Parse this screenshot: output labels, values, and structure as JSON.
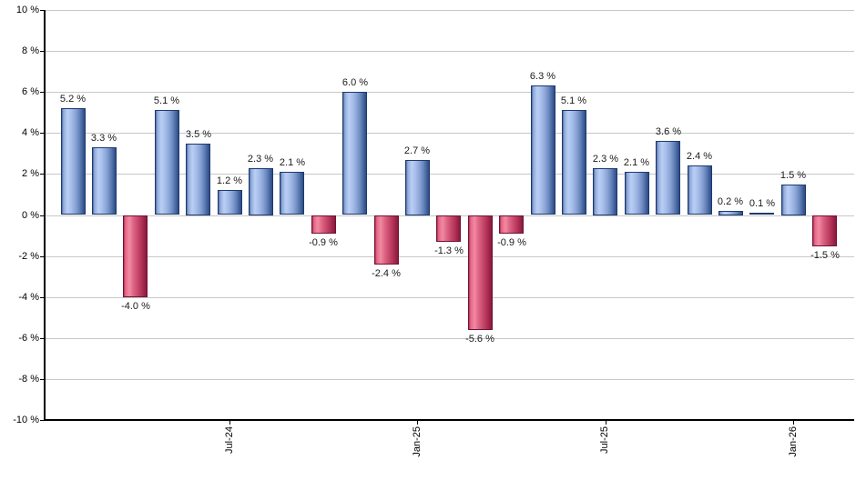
{
  "chart_data": {
    "type": "bar",
    "title": "",
    "description": "Monthly total returns bar chart, positive months blue, negative months red",
    "unit": "%",
    "values": [
      5.2,
      3.3,
      -4.0,
      5.1,
      3.5,
      1.2,
      2.3,
      2.1,
      -0.9,
      6.0,
      -2.4,
      2.7,
      -1.3,
      -5.6,
      -0.9,
      6.3,
      5.1,
      2.3,
      2.1,
      3.6,
      2.4,
      0.2,
      0.1,
      1.5,
      -1.5
    ],
    "bar_value_labels": [
      "5.2 %",
      "3.3 %",
      "-4.0 %",
      "5.1 %",
      "3.5 %",
      "1.2 %",
      "2.3 %",
      "2.1 %",
      "-0.9 %",
      "6.0 %",
      "-2.4 %",
      "2.7 %",
      "-1.3 %",
      "-5.6 %",
      "-0.9 %",
      "6.3 %",
      "5.1 %",
      "2.3 %",
      "2.1 %",
      "3.6 %",
      "2.4 %",
      "0.2 %",
      "0.1 %",
      "1.5 %",
      "-1.5 %"
    ],
    "y_axis": {
      "min": -10,
      "max": 10,
      "step": 2,
      "tick_labels": [
        "10 %",
        "8 %",
        "6 %",
        "4 %",
        "2 %",
        "0 %",
        "-2 %",
        "-4 %",
        "-6 %",
        "-8 %",
        "-10 %"
      ],
      "grid": true
    },
    "x_axis": {
      "ticks": [
        {
          "bar_index": 5,
          "label": "Jul-24"
        },
        {
          "bar_index": 11,
          "label": "Jan-25"
        },
        {
          "bar_index": 17,
          "label": "Jul-25"
        },
        {
          "bar_index": 23,
          "label": "Jan-26"
        }
      ]
    },
    "legend": "none",
    "colors": {
      "positive_border": "#1d3a6d",
      "positive_fill_stops": [
        [
          "#4a689f",
          0
        ],
        [
          "#8fa9db",
          7
        ],
        [
          "#bacff3",
          24
        ],
        [
          "#a5bde9",
          42
        ],
        [
          "#8aa3d5",
          60
        ],
        [
          "#6281b8",
          78
        ],
        [
          "#3f5d97",
          92
        ],
        [
          "#2e4c82",
          100
        ]
      ],
      "negative_border": "#701330",
      "negative_fill_stops": [
        [
          "#a93054",
          0
        ],
        [
          "#e76487",
          7
        ],
        [
          "#f08aa2",
          24
        ],
        [
          "#dd6585",
          42
        ],
        [
          "#c94a6d",
          60
        ],
        [
          "#b23357",
          78
        ],
        [
          "#972247",
          92
        ],
        [
          "#88193c",
          100
        ]
      ],
      "gridline": "#c8c8c8",
      "axis": "#000000",
      "value_label_text": "#1a1a1a",
      "axis_label_text": "#000000"
    }
  }
}
